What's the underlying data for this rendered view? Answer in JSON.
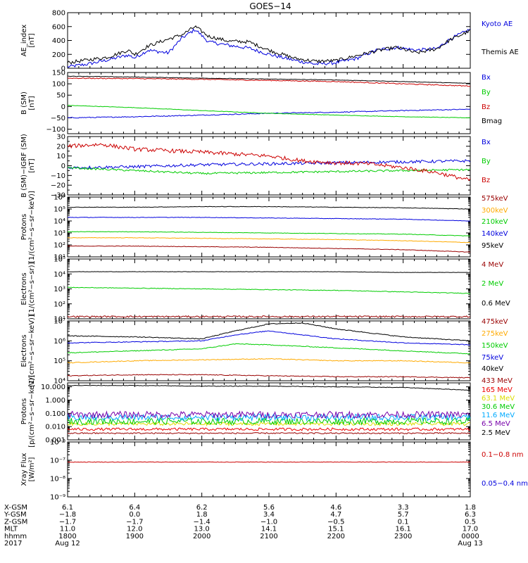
{
  "title": "GOES−14",
  "colors": {
    "black": "#000000",
    "red": "#cc0000",
    "blue": "#0000dd",
    "green": "#00cc00",
    "orange": "#ffaa00",
    "teal": "#00aaff",
    "purple": "#7700aa",
    "darkred": "#990000",
    "yellow": "#dddd00",
    "brightred": "#ee0000"
  },
  "x_axis": {
    "rows": [
      {
        "label": "X-GSM",
        "values": [
          "6.1",
          "6.4",
          "6.2",
          "5.6",
          "4.6",
          "3.3",
          "1.8"
        ]
      },
      {
        "label": "Y-GSM",
        "values": [
          "−1.8",
          "0.0",
          "1.8",
          "3.4",
          "4.7",
          "5.7",
          "6.3"
        ]
      },
      {
        "label": "Z-GSM",
        "values": [
          "−1.7",
          "−1.7",
          "−1.4",
          "−1.0",
          "−0.5",
          "0.1",
          "0.5"
        ]
      },
      {
        "label": "MLT",
        "values": [
          "11.0",
          "12.0",
          "13.0",
          "14.1",
          "15.1",
          "16.1",
          "17.0"
        ]
      },
      {
        "label": "hhmm",
        "values": [
          "1800",
          "1900",
          "2000",
          "2100",
          "2200",
          "2300",
          "0000"
        ]
      },
      {
        "label": "2017",
        "values": [
          "Aug 12",
          "",
          "",
          "",
          "",
          "",
          "Aug 13"
        ]
      }
    ]
  },
  "chart_data": [
    {
      "type": "line",
      "ylabel": "AE_index\n[nT]",
      "scale": "linear",
      "ylim": [
        0,
        800
      ],
      "ticks": [
        {
          "v": 0,
          "t": "0"
        },
        {
          "v": 200,
          "t": "200"
        },
        {
          "v": 400,
          "t": "400"
        },
        {
          "v": 600,
          "t": "600"
        },
        {
          "v": 800,
          "t": "800"
        }
      ],
      "series": [
        {
          "name": "Kyoto AE",
          "color": "blue",
          "noise": 25,
          "x": [
            0,
            0.3,
            0.6,
            0.9,
            1.0,
            1.2,
            1.5,
            1.7,
            1.9,
            2.1,
            2.4,
            2.7,
            3.0,
            3.4,
            3.7,
            4.0,
            4.3,
            4.6,
            4.9,
            5.2,
            5.5,
            5.7,
            6.0
          ],
          "y": [
            20,
            60,
            120,
            190,
            150,
            260,
            220,
            430,
            560,
            380,
            330,
            290,
            200,
            110,
            60,
            80,
            140,
            260,
            300,
            260,
            280,
            420,
            560
          ]
        },
        {
          "name": "Themis AE",
          "color": "black",
          "noise": 25,
          "x": [
            0,
            0.3,
            0.6,
            0.9,
            1.0,
            1.2,
            1.5,
            1.7,
            1.9,
            2.1,
            2.4,
            2.7,
            3.0,
            3.4,
            3.7,
            4.0,
            4.3,
            4.6,
            4.9,
            5.2,
            5.5,
            5.7,
            6.0
          ],
          "y": [
            80,
            120,
            160,
            260,
            200,
            320,
            420,
            480,
            600,
            460,
            390,
            380,
            260,
            140,
            100,
            110,
            180,
            250,
            300,
            220,
            280,
            410,
            540
          ]
        }
      ]
    },
    {
      "type": "line",
      "ylabel": "B (SM)\n[nT]",
      "scale": "linear",
      "ylim": [
        -120,
        150
      ],
      "ticks": [
        {
          "v": -100,
          "t": "−100"
        },
        {
          "v": -50,
          "t": "−50"
        },
        {
          "v": 0,
          "t": "0"
        },
        {
          "v": 50,
          "t": "50"
        },
        {
          "v": 100,
          "t": "100"
        },
        {
          "v": 150,
          "t": "150"
        }
      ],
      "series": [
        {
          "name": "Bx",
          "color": "blue",
          "noise": 2,
          "x": [
            0,
            1,
            2,
            3,
            4,
            5,
            6
          ],
          "y": [
            -50,
            -45,
            -38,
            -30,
            -25,
            -18,
            -12
          ]
        },
        {
          "name": "By",
          "color": "green",
          "noise": 1,
          "x": [
            0,
            1,
            2,
            3,
            4,
            5,
            6
          ],
          "y": [
            5,
            -5,
            -18,
            -30,
            -38,
            -45,
            -50
          ]
        },
        {
          "name": "Bz",
          "color": "red",
          "noise": 2,
          "x": [
            0,
            1,
            2,
            3,
            4,
            5,
            6
          ],
          "y": [
            125,
            123,
            120,
            115,
            110,
            100,
            90
          ]
        },
        {
          "name": "Bmag",
          "color": "black",
          "noise": 1,
          "x": [
            0,
            1,
            2,
            3,
            4,
            5,
            6
          ],
          "y": [
            134,
            130,
            125,
            121,
            117,
            110,
            102
          ]
        }
      ]
    },
    {
      "type": "line",
      "ylabel": "B (SM)−IGRF (SM)\n[nT]",
      "scale": "linear",
      "ylim": [
        -30,
        30
      ],
      "ticks": [
        {
          "v": -30,
          "t": "−30"
        },
        {
          "v": -20,
          "t": "−20"
        },
        {
          "v": -10,
          "t": "−10"
        },
        {
          "v": 0,
          "t": "0"
        },
        {
          "v": 10,
          "t": "10"
        },
        {
          "v": 20,
          "t": "20"
        },
        {
          "v": 30,
          "t": "30"
        }
      ],
      "minor": [
        -25,
        -15,
        -5,
        5,
        15,
        25
      ],
      "series": [
        {
          "name": "Bx",
          "color": "blue",
          "noise": 1.5,
          "x": [
            0,
            1,
            2,
            3,
            4,
            5,
            6
          ],
          "y": [
            -2,
            -1,
            1,
            2,
            3,
            4,
            5
          ]
        },
        {
          "name": "By",
          "color": "green",
          "noise": 1,
          "x": [
            0,
            1,
            2,
            3,
            4,
            5,
            6
          ],
          "y": [
            -2,
            -5,
            -8,
            -7,
            -6,
            -5,
            -4
          ]
        },
        {
          "name": "Bz",
          "color": "red",
          "noise": 2,
          "x": [
            0,
            0.5,
            1,
            2,
            3,
            3.5,
            4,
            4.5,
            5,
            5.5,
            6
          ],
          "y": [
            20,
            22,
            17,
            14,
            10,
            5,
            3,
            2,
            -2,
            -7,
            -15
          ]
        }
      ]
    },
    {
      "type": "line",
      "ylabel": "Protons\n[1/(cm²−s−sr−keV)]",
      "scale": "log",
      "ylim": [
        1,
        6
      ],
      "ticks": [
        {
          "v": 1,
          "t": "10¹"
        },
        {
          "v": 2,
          "t": "10²"
        },
        {
          "v": 3,
          "t": "10³"
        },
        {
          "v": 4,
          "t": "10⁴"
        },
        {
          "v": 5,
          "t": "10⁵"
        },
        {
          "v": 6,
          "t": "10⁶"
        }
      ],
      "series": [
        {
          "name": "575keV",
          "color": "darkred",
          "noise": 0.02,
          "x": [
            0,
            1,
            2,
            3,
            4,
            5,
            6
          ],
          "y": [
            1.9,
            1.9,
            1.85,
            1.8,
            1.7,
            1.6,
            1.4
          ]
        },
        {
          "name": "300keV",
          "color": "orange",
          "noise": 0.02,
          "x": [
            0,
            1,
            2,
            3,
            4,
            5,
            6
          ],
          "y": [
            2.6,
            2.6,
            2.55,
            2.5,
            2.45,
            2.35,
            2.2
          ]
        },
        {
          "name": "210keV",
          "color": "green",
          "noise": 0.02,
          "x": [
            0,
            1,
            2,
            3,
            4,
            5,
            6
          ],
          "y": [
            3.1,
            3.1,
            3.05,
            3.0,
            2.95,
            2.9,
            2.75
          ]
        },
        {
          "name": "140keV",
          "color": "blue",
          "noise": 0.02,
          "x": [
            0,
            1,
            2,
            3,
            4,
            5,
            6
          ],
          "y": [
            4.3,
            4.3,
            4.3,
            4.25,
            4.2,
            4.15,
            4.0
          ]
        },
        {
          "name": "95keV",
          "color": "black",
          "noise": 0.02,
          "x": [
            0,
            1,
            2,
            3,
            4,
            5,
            6
          ],
          "y": [
            5.15,
            5.15,
            5.2,
            5.2,
            5.15,
            5.1,
            5.0
          ]
        }
      ]
    },
    {
      "type": "line",
      "ylabel": "Electrons\n[1/(cm²−s−sr)]",
      "scale": "log",
      "ylim": [
        1,
        5
      ],
      "ticks": [
        {
          "v": 1,
          "t": "10¹"
        },
        {
          "v": 2,
          "t": "10²"
        },
        {
          "v": 3,
          "t": "10³"
        },
        {
          "v": 4,
          "t": "10⁴"
        },
        {
          "v": 5,
          "t": "10⁵"
        }
      ],
      "series": [
        {
          "name": "4 MeV",
          "color": "darkred",
          "noise": 0.05,
          "x": [
            0,
            1,
            2,
            3,
            4,
            5,
            6
          ],
          "y": [
            1.15,
            1.15,
            1.15,
            1.15,
            1.15,
            1.15,
            1.15
          ]
        },
        {
          "name": "2 MeV",
          "color": "green",
          "noise": 0.02,
          "x": [
            0,
            1,
            2,
            3,
            4,
            5,
            6
          ],
          "y": [
            3.1,
            3.05,
            3.0,
            2.95,
            2.9,
            2.8,
            2.7
          ]
        },
        {
          "name": "0.6 MeV",
          "color": "black",
          "noise": 0.01,
          "x": [
            0,
            1,
            2,
            3,
            4,
            5,
            6
          ],
          "y": [
            4.15,
            4.15,
            4.15,
            4.15,
            4.15,
            4.1,
            4.1
          ]
        }
      ]
    },
    {
      "type": "line",
      "ylabel": "Electrons\n[1/(cm²−s−sr−keV)]",
      "scale": "log",
      "ylim": [
        4,
        7
      ],
      "ticks": [
        {
          "v": 4,
          "t": "10⁴"
        },
        {
          "v": 5,
          "t": "10⁵"
        },
        {
          "v": 6,
          "t": "10⁶"
        },
        {
          "v": 7,
          "t": "10⁷"
        }
      ],
      "series": [
        {
          "name": "475keV",
          "color": "darkred",
          "noise": 0.02,
          "x": [
            0,
            1,
            2,
            3,
            4,
            5,
            6
          ],
          "y": [
            4.25,
            4.3,
            4.3,
            4.25,
            4.2,
            4.2,
            4.15
          ]
        },
        {
          "name": "275keV",
          "color": "orange",
          "noise": 0.02,
          "x": [
            0,
            1,
            2,
            3,
            4,
            5,
            6
          ],
          "y": [
            4.9,
            5.0,
            5.05,
            5.1,
            5.0,
            5.0,
            4.9
          ]
        },
        {
          "name": "150keV",
          "color": "green",
          "noise": 0.02,
          "x": [
            0,
            1,
            2,
            2.5,
            3,
            4,
            5,
            6
          ],
          "y": [
            5.4,
            5.5,
            5.6,
            5.85,
            5.8,
            5.65,
            5.5,
            5.35
          ]
        },
        {
          "name": "75keV",
          "color": "blue",
          "noise": 0.02,
          "x": [
            0,
            1,
            2,
            2.5,
            3,
            4,
            5,
            6
          ],
          "y": [
            5.9,
            5.95,
            6.0,
            6.3,
            6.5,
            6.1,
            5.9,
            5.8
          ]
        },
        {
          "name": "40keV",
          "color": "black",
          "noise": 0.02,
          "x": [
            0,
            1,
            2,
            2.5,
            3,
            3.5,
            4,
            5,
            6
          ],
          "y": [
            6.25,
            6.2,
            6.1,
            6.5,
            6.85,
            6.9,
            6.6,
            6.2,
            6.0
          ]
        }
      ]
    },
    {
      "type": "line",
      "ylabel": "Protons\n[p/(cm²−s−sr−keV)]",
      "scale": "log",
      "ylim": [
        -3,
        1.3
      ],
      "ticks": [
        {
          "v": -3,
          "t": "0.001"
        },
        {
          "v": -2,
          "t": "0.010"
        },
        {
          "v": -1,
          "t": "0.100"
        },
        {
          "v": 0,
          "t": "1.000"
        },
        {
          "v": 1,
          "t": "10.000"
        }
      ],
      "series": [
        {
          "name": "433 MeV",
          "color": "darkred",
          "noise": 0.05,
          "x": [
            0,
            3,
            6
          ],
          "y": [
            -2.5,
            -2.5,
            -2.5
          ]
        },
        {
          "name": "165 MeV",
          "color": "brightred",
          "noise": 0.1,
          "x": [
            0,
            3,
            6
          ],
          "y": [
            -2.2,
            -2.2,
            -2.2
          ]
        },
        {
          "name": "63.1 MeV",
          "color": "yellow",
          "noise": 0.12,
          "x": [
            0,
            3,
            6
          ],
          "y": [
            -1.8,
            -1.8,
            -1.8
          ]
        },
        {
          "name": "30.6 MeV",
          "color": "green",
          "noise": 0.25,
          "x": [
            0,
            3,
            6
          ],
          "y": [
            -1.6,
            -1.6,
            -1.6
          ]
        },
        {
          "name": "11.6 MeV",
          "color": "teal",
          "noise": 0.25,
          "x": [
            0,
            3,
            6
          ],
          "y": [
            -1.3,
            -1.3,
            -1.3
          ]
        },
        {
          "name": "6.5 MeV",
          "color": "purple",
          "noise": 0.25,
          "x": [
            0,
            3,
            6
          ],
          "y": [
            -1.1,
            -1.1,
            -1.1
          ]
        },
        {
          "name": "2.5 MeV",
          "color": "black",
          "noise": 0.02,
          "x": [
            0,
            1,
            2,
            3,
            4,
            5,
            6
          ],
          "y": [
            1.1,
            1.1,
            1.05,
            1.05,
            1.0,
            0.95,
            0.75
          ]
        }
      ]
    },
    {
      "type": "line",
      "ylabel": "Xray Flux\n[W/m²]",
      "scale": "log",
      "ylim": [
        -9,
        -6
      ],
      "ticks": [
        {
          "v": -9,
          "t": "10⁻⁹"
        },
        {
          "v": -8,
          "t": "10⁻⁸"
        },
        {
          "v": -7,
          "t": "10⁻⁷"
        },
        {
          "v": -6,
          "t": "10⁻⁶"
        }
      ],
      "invert": true,
      "series": [
        {
          "name": "0.1−0.8 nm",
          "color": "red",
          "noise": 0.015,
          "x": [
            0,
            3,
            6
          ],
          "y": [
            -7.1,
            -7.1,
            -7.1
          ]
        },
        {
          "name": "0.05−0.4 nm",
          "color": "blue",
          "noise": 0,
          "x": [],
          "y": []
        }
      ]
    }
  ]
}
